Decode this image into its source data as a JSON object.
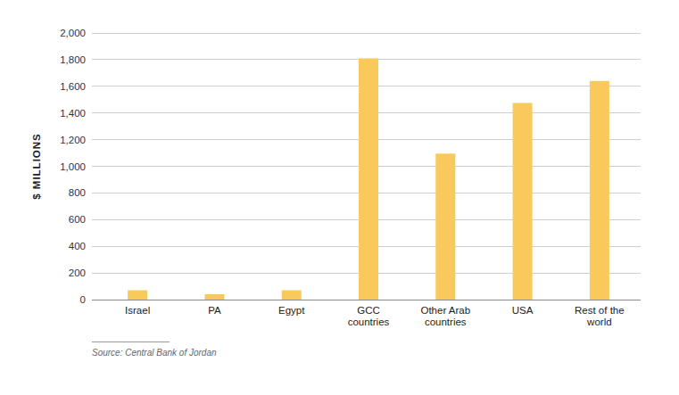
{
  "chart_data": {
    "type": "bar",
    "y_label": "$ MILLIONS",
    "source": "Source: Central Bank of Jordan",
    "categories": [
      "Israel",
      "PA",
      "Egypt",
      "GCC countries",
      "Other Arab countries",
      "USA",
      "Rest of the world"
    ],
    "values": [
      70,
      40,
      70,
      1810,
      1095,
      1475,
      1640
    ],
    "color": "#f9c95b",
    "ylim": [
      0,
      2000
    ],
    "yticks": [
      0,
      200,
      400,
      600,
      800,
      {
        "value": 1000,
        "label": "1,000"
      },
      {
        "value": 1200,
        "label": "1,200"
      },
      {
        "value": 1400,
        "label": "1,400"
      },
      {
        "value": 1600,
        "label": "1,600"
      },
      {
        "value": 1800,
        "label": "1,800"
      },
      {
        "value": 2000,
        "label": "2,000"
      }
    ],
    "grid": true
  }
}
